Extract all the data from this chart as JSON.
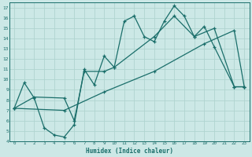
{
  "xlabel": "Humidex (Indice chaleur)",
  "bg_color": "#cce8e6",
  "grid_color": "#b0d4d0",
  "line_color": "#1a6e6a",
  "xlim": [
    -0.5,
    23.5
  ],
  "ylim": [
    4,
    17.5
  ],
  "xticks": [
    0,
    1,
    2,
    3,
    4,
    5,
    6,
    7,
    8,
    9,
    10,
    11,
    12,
    13,
    14,
    15,
    16,
    17,
    18,
    19,
    20,
    21,
    22,
    23
  ],
  "yticks": [
    4,
    5,
    6,
    7,
    8,
    9,
    10,
    11,
    12,
    13,
    14,
    15,
    16,
    17
  ],
  "line1_x": [
    0,
    1,
    2,
    3,
    4,
    5,
    6,
    7,
    8,
    9,
    10,
    11,
    12,
    13,
    14,
    15,
    16,
    17,
    18,
    19,
    20,
    22,
    23
  ],
  "line1_y": [
    7.2,
    9.7,
    8.2,
    5.3,
    4.6,
    4.4,
    5.6,
    11.0,
    9.5,
    12.3,
    11.2,
    15.7,
    16.2,
    14.2,
    13.7,
    15.7,
    17.2,
    16.2,
    14.2,
    15.2,
    13.2,
    9.3,
    9.3
  ],
  "line2_x": [
    0,
    2,
    5,
    6,
    7,
    9,
    10,
    14,
    16,
    18,
    20,
    22,
    23
  ],
  "line2_y": [
    7.2,
    8.3,
    8.2,
    6.0,
    10.8,
    10.8,
    11.2,
    14.2,
    16.2,
    14.2,
    15.0,
    9.3,
    9.3
  ],
  "line3_x": [
    0,
    5,
    9,
    14,
    19,
    22,
    23
  ],
  "line3_y": [
    7.2,
    7.0,
    8.8,
    10.8,
    13.5,
    14.8,
    9.3
  ]
}
